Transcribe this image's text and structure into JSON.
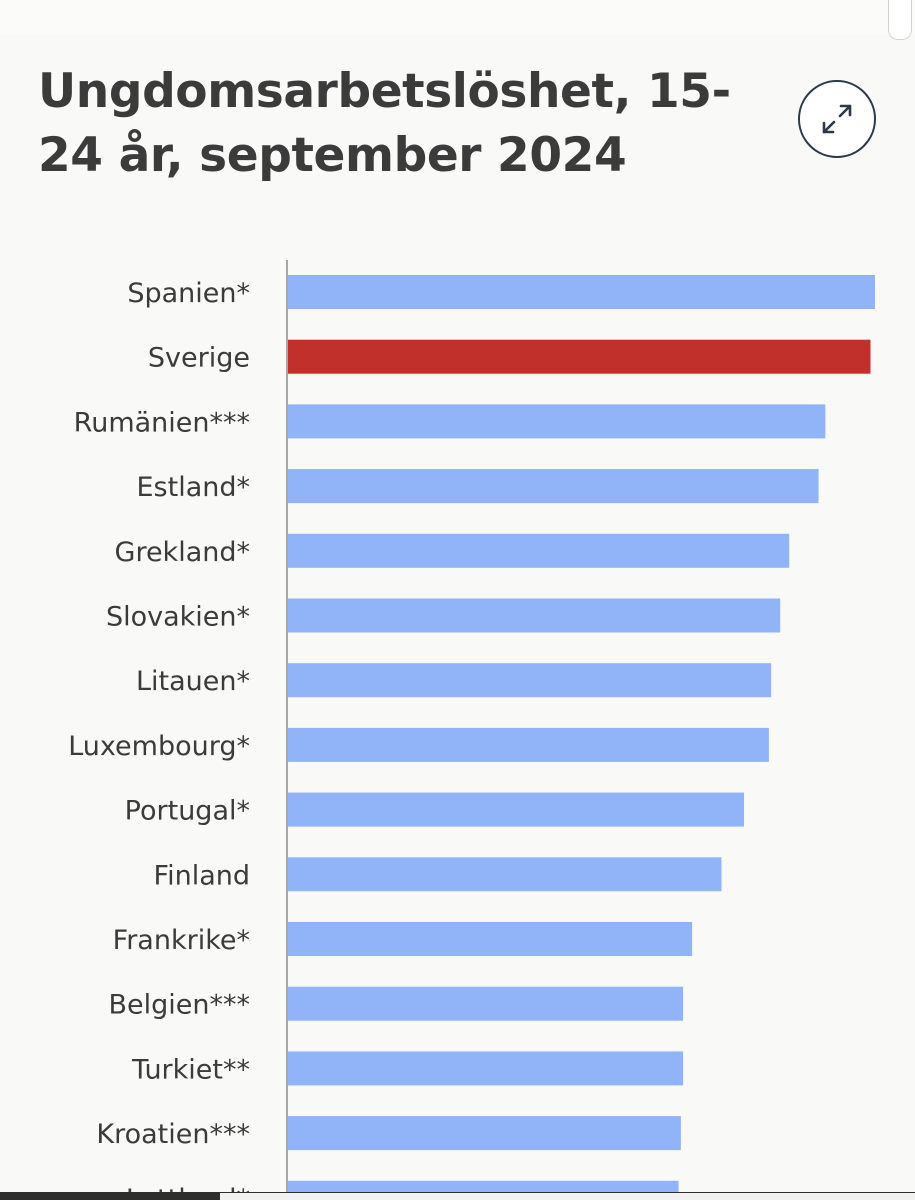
{
  "title": "Ungdomsarbetslöshet, 15-24 år, september 2024",
  "title_line1": "Ungdomsarbetslöshet, 15-",
  "title_line2": "24 år, september 2024",
  "expand_icon": "expand-arrows-icon",
  "colors": {
    "default_bar": "#91b3f7",
    "highlight_bar": "#c2302c",
    "label_text": "#3b3b3b",
    "axis": "#a6a6a6"
  },
  "chart_data": {
    "type": "bar",
    "orientation": "horizontal",
    "title": "Ungdomsarbetslöshet, 15-24 år, september 2024",
    "xlabel": "",
    "ylabel": "",
    "unit": "%",
    "xlim": [
      0,
      26
    ],
    "highlight": "Sverige",
    "categories": [
      "Spanien*",
      "Sverige",
      "Rumänien***",
      "Estland*",
      "Grekland*",
      "Slovakien*",
      "Litauen*",
      "Luxembourg*",
      "Portugal*",
      "Finland",
      "Frankrike*",
      "Belgien***",
      "Turkiet**",
      "Kroatien***",
      "Lettland*"
    ],
    "values": [
      26.0,
      25.8,
      23.8,
      23.5,
      22.2,
      21.8,
      21.4,
      21.3,
      20.2,
      19.2,
      17.9,
      17.5,
      17.5,
      17.4,
      17.3
    ]
  }
}
